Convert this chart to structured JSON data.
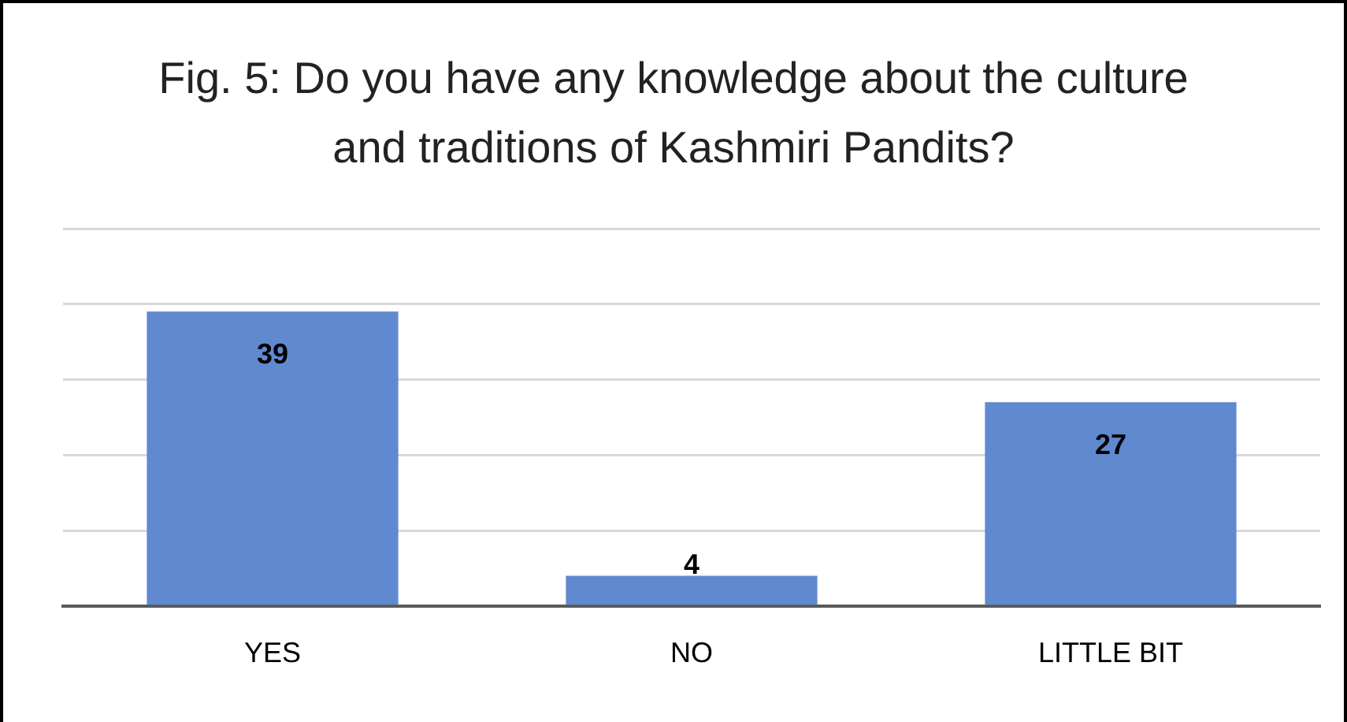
{
  "chart_data": {
    "type": "bar",
    "title": "Fig. 5: Do you have any knowledge about the culture and traditions of Kashmiri Pandits?",
    "categories": [
      "YES",
      "NO",
      "LITTLE BIT"
    ],
    "values": [
      39,
      4,
      27
    ],
    "color": "#6089cf",
    "ylim": [
      0,
      50
    ],
    "yticks": [
      {
        "value": 0,
        "label": null
      },
      {
        "value": 10,
        "label": null
      },
      {
        "value": 20,
        "label": null
      },
      {
        "value": 30,
        "label": null
      },
      {
        "value": 40,
        "label": null
      },
      {
        "value": 50,
        "label": null
      }
    ],
    "grid": "y",
    "tick_labels": "x",
    "data_labels": true
  }
}
